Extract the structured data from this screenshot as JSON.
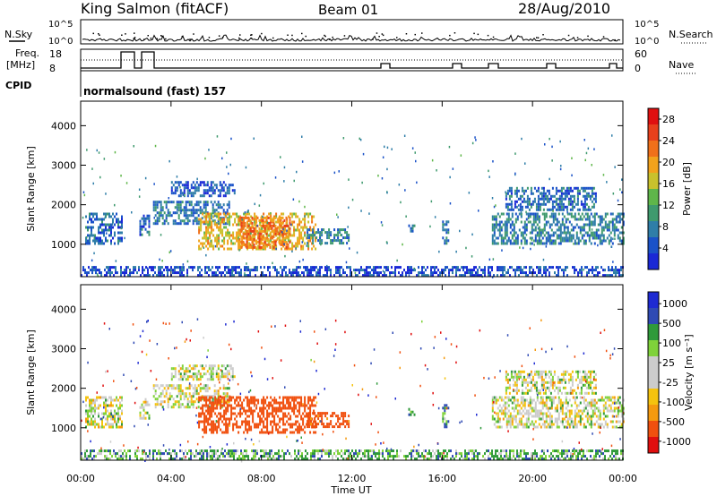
{
  "header": {
    "station": "King Salmon (fitACF)",
    "beam": "Beam 01",
    "date": "28/Aug/2010"
  },
  "strip": {
    "nsky_label": "N.Sky",
    "nsearch_label": "N.Search",
    "freq_label": "Freq.",
    "freq_unit": "[MHz]",
    "nave_label": "Nave",
    "cpid_label": "CPID",
    "cpid_value": "normalsound (fast) 157",
    "noise_ticks": [
      "10^5",
      "10^0"
    ],
    "freq_ticks": [
      "18",
      "8"
    ],
    "nave_ticks": [
      "60",
      "0"
    ]
  },
  "colors": {
    "power_scale": [
      "#1a28d6",
      "#1a52c8",
      "#2f7ea8",
      "#3f9a6e",
      "#5fb64a",
      "#c9c12c",
      "#f2a21c",
      "#f0701a",
      "#e8401c",
      "#e01010"
    ],
    "velocity_scale": [
      "#e00f0f",
      "#f0500f",
      "#f59a0f",
      "#f5c30f",
      "#cccccc",
      "#cccccc",
      "#7fd23a",
      "#2f9a3a",
      "#2f4ab4",
      "#1e2ad2"
    ]
  },
  "chart_data": [
    {
      "type": "heatmap",
      "panel": "power",
      "ylabel": "Slant Range [km]",
      "xlabel": "",
      "x_ticks": [
        "00:00",
        "04:00",
        "08:00",
        "12:00",
        "16:00",
        "20:00",
        "00:00"
      ],
      "x_range_hours": [
        0,
        24
      ],
      "y_ticks": [
        1000,
        2000,
        3000,
        4000
      ],
      "ylim": [
        180,
        4620
      ],
      "colorbar": {
        "label": "Power [dB]",
        "ticks": [
          4,
          8,
          12,
          16,
          20,
          24,
          28
        ],
        "range": [
          0,
          30
        ]
      },
      "regions": [
        {
          "t0": 0.2,
          "t1": 1.8,
          "r0": 1000,
          "r1": 1800,
          "level": 6
        },
        {
          "t0": 2.6,
          "t1": 3.0,
          "r0": 1250,
          "r1": 1750,
          "level": 6
        },
        {
          "t0": 3.2,
          "t1": 6.6,
          "r0": 1550,
          "r1": 2100,
          "level": 7
        },
        {
          "t0": 4.0,
          "t1": 6.8,
          "r0": 2200,
          "r1": 2600,
          "level": 5
        },
        {
          "t0": 5.2,
          "t1": 10.4,
          "r0": 850,
          "r1": 1800,
          "level": 18
        },
        {
          "t0": 7.0,
          "t1": 9.3,
          "r0": 950,
          "r1": 1700,
          "level": 22
        },
        {
          "t0": 10.0,
          "t1": 11.9,
          "r0": 1050,
          "r1": 1400,
          "level": 8
        },
        {
          "t0": 14.5,
          "t1": 14.8,
          "r0": 1300,
          "r1": 1500,
          "level": 6
        },
        {
          "t0": 16.0,
          "t1": 16.3,
          "r0": 1050,
          "r1": 1600,
          "level": 7
        },
        {
          "t0": 18.2,
          "t1": 24.0,
          "r0": 1000,
          "r1": 1800,
          "level": 8
        },
        {
          "t0": 18.8,
          "t1": 22.8,
          "r0": 1900,
          "r1": 2450,
          "level": 6
        },
        {
          "t0": 0.0,
          "t1": 24.0,
          "r0": 180,
          "r1": 450,
          "level": 4
        }
      ]
    },
    {
      "type": "heatmap",
      "panel": "velocity",
      "ylabel": "Slant Range [km]",
      "xlabel": "Time UT",
      "x_ticks": [
        "00:00",
        "04:00",
        "08:00",
        "12:00",
        "16:00",
        "20:00",
        "00:00"
      ],
      "x_range_hours": [
        0,
        24
      ],
      "y_ticks": [
        1000,
        2000,
        3000,
        4000
      ],
      "ylim": [
        180,
        4620
      ],
      "colorbar": {
        "label": "Velocity [m s⁻¹]",
        "ticks": [
          1000,
          500,
          100,
          25,
          -25,
          -100,
          -500,
          -1000
        ]
      },
      "regions": [
        {
          "t0": 0.2,
          "t1": 1.8,
          "r0": 1000,
          "r1": 1800,
          "velocity": 0
        },
        {
          "t0": 2.6,
          "t1": 3.0,
          "r0": 1250,
          "r1": 1750,
          "velocity": 0
        },
        {
          "t0": 3.2,
          "t1": 6.6,
          "r0": 1550,
          "r1": 2100,
          "velocity": 0
        },
        {
          "t0": 4.0,
          "t1": 6.8,
          "r0": 2200,
          "r1": 2600,
          "velocity": 0
        },
        {
          "t0": 5.2,
          "t1": 10.4,
          "r0": 850,
          "r1": 1800,
          "velocity": -200
        },
        {
          "t0": 10.0,
          "t1": 11.9,
          "r0": 1050,
          "r1": 1400,
          "velocity": -150
        },
        {
          "t0": 14.5,
          "t1": 14.8,
          "r0": 1300,
          "r1": 1500,
          "velocity": 80
        },
        {
          "t0": 16.0,
          "t1": 16.3,
          "r0": 1050,
          "r1": 1600,
          "velocity": 80
        },
        {
          "t0": 18.2,
          "t1": 24.0,
          "r0": 1000,
          "r1": 1800,
          "velocity": 0
        },
        {
          "t0": 18.8,
          "t1": 22.8,
          "r0": 1900,
          "r1": 2450,
          "velocity": 0
        },
        {
          "t0": 0.0,
          "t1": 24.0,
          "r0": 180,
          "r1": 450,
          "velocity": 60
        }
      ]
    }
  ]
}
